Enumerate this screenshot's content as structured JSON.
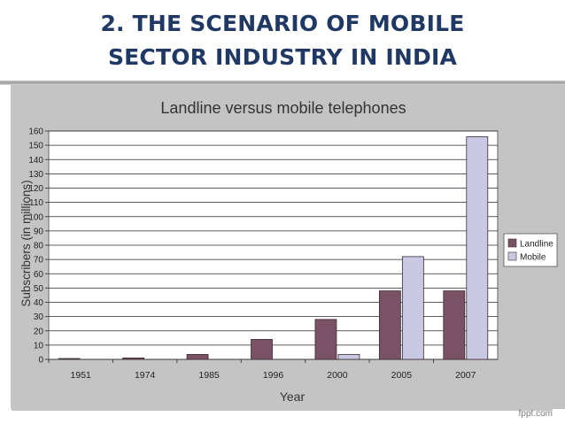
{
  "slide": {
    "title_line1": "2.  THE SCENARIO OF MOBILE",
    "title_line2": "SECTOR INDUSTRY IN INDIA",
    "watermark": "fppt.com"
  },
  "chart_data": {
    "type": "bar",
    "title": "Landline versus mobile telephones",
    "xlabel": "Year",
    "ylabel": "Subscribers (in millions)",
    "ylim": [
      0,
      160
    ],
    "yticks": [
      0,
      10,
      20,
      30,
      40,
      50,
      60,
      70,
      80,
      90,
      100,
      110,
      120,
      130,
      140,
      150,
      160
    ],
    "categories": [
      "1951",
      "1974",
      "1985",
      "1996",
      "2000",
      "2005",
      "2007"
    ],
    "series": [
      {
        "name": "Landline",
        "color": "#7a5266",
        "values": [
          0.1,
          1,
          3.5,
          14,
          28,
          48,
          48
        ]
      },
      {
        "name": "Mobile",
        "color": "#c9c8e3",
        "values": [
          0,
          0,
          0,
          0,
          3.5,
          72,
          156
        ]
      }
    ],
    "grid": true,
    "legend": "right"
  }
}
